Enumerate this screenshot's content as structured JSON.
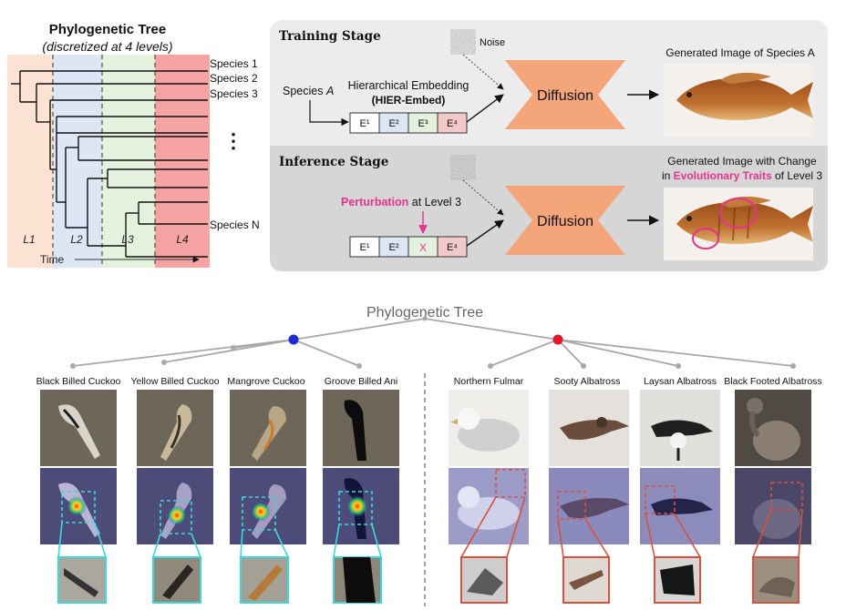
{
  "tree_panel": {
    "title": "Phylogenetic Tree",
    "subtitle": "(discretized at 4 levels)",
    "species": [
      "Species 1",
      "Species 2",
      "Species 3",
      "Species N"
    ],
    "ellipsis": "⋮",
    "levels": [
      "L1",
      "L2",
      "L3",
      "L4"
    ],
    "time_label": "Time",
    "colors": {
      "l1": "#fbe2d3",
      "l2": "#dce6f5",
      "l3": "#e3f1dd",
      "l4": "#f6a3a3"
    }
  },
  "training": {
    "stage_label": "Training Stage",
    "noise_label": "Noise",
    "species_prefix": "Species",
    "species_letter": "A",
    "embed_title": "Hierarchical Embedding",
    "embed_name": "(HIER-Embed)",
    "embeds": [
      "E¹",
      "E²",
      "E³",
      "E⁴"
    ],
    "diffusion_label": "Diffusion",
    "output_label": "Generated Image of Species A"
  },
  "inference": {
    "stage_label": "Inference Stage",
    "perturb_word": "Perturbation",
    "perturb_rest": " at Level 3",
    "embeds": [
      "E¹",
      "E²",
      "X",
      "E⁴"
    ],
    "diffusion_label": "Diffusion",
    "output_line1": "Generated Image with Change",
    "output_line2_pre": "in ",
    "output_line2_hl": "Evolutionary Traits",
    "output_line2_post": " of Level 3"
  },
  "bottom": {
    "title": "Phylogenetic Tree",
    "cuckoo_group": [
      "Black Billed Cuckoo",
      "Yellow Billed Cuckoo",
      "Mangrove Cuckoo",
      "Groove Billed Ani"
    ],
    "albatross_group": [
      "Northern Fulmar",
      "Sooty Albatross",
      "Laysan Albatross",
      "Black Footed Albatross"
    ],
    "node_colors": {
      "left": "#1f2bd6",
      "right": "#e6162a"
    }
  },
  "colors": {
    "panel_bg": "#ececec",
    "inference_bg": "#d6d6d6",
    "diffusion": "#f4a57a",
    "highlight": "#e6338c",
    "cyan": "#3ad9e0",
    "red_box": "#d9503c"
  }
}
